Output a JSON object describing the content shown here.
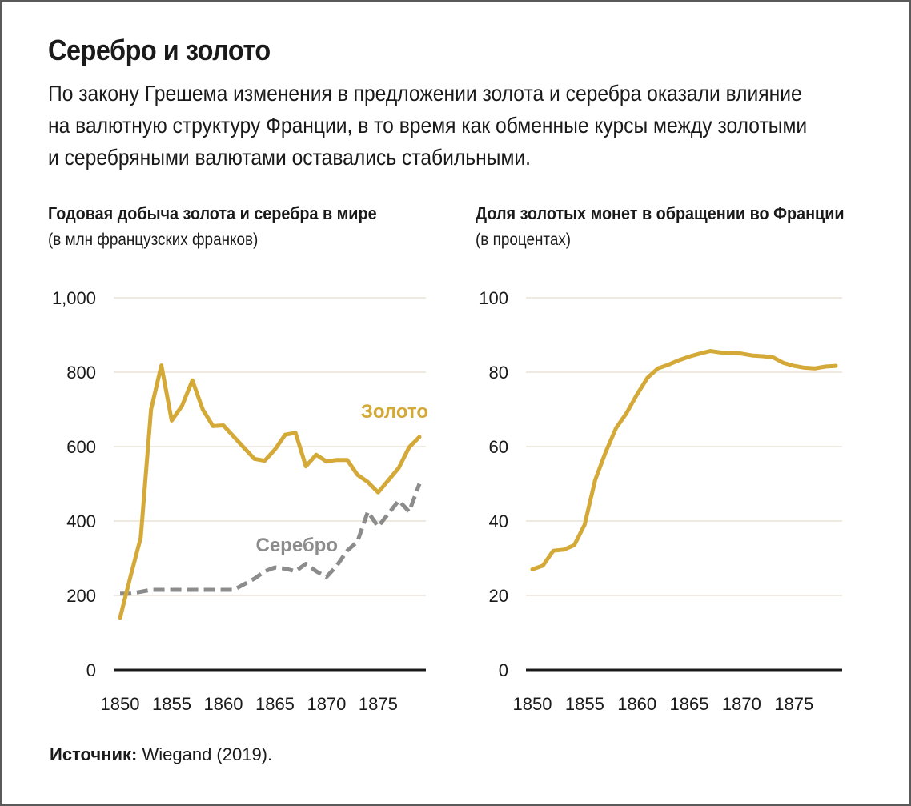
{
  "header": {
    "title": "Серебро и золото",
    "subtitle_lines": [
      "По закону Грешема изменения в предложении золота и серебра оказали влияние",
      "на валютную структуру Франции, в то время как обменные курсы между золотыми",
      "и серебряными валютами оставались стабильными."
    ]
  },
  "source": {
    "label": "Источник:",
    "text": " Wiegand (2019)."
  },
  "colors": {
    "gold": "#d4a937",
    "silver": "#8c8c8c",
    "grid": "#e8e4d8",
    "axis": "#1a1a1a"
  },
  "chart_data": [
    {
      "type": "line",
      "title": "Годовая добыча золота и серебра в мире",
      "ylabel": "(в млн французских франков)",
      "xlim": [
        1850,
        1879
      ],
      "ylim": [
        0,
        1000
      ],
      "yticks": [
        0,
        200,
        400,
        600,
        800,
        1000
      ],
      "ytick_labels": [
        "0",
        "200",
        "400",
        "600",
        "800",
        "1,000"
      ],
      "xticks": [
        1850,
        1855,
        1860,
        1865,
        1870,
        1875
      ],
      "xtick_labels": [
        "1850",
        "1855",
        "1860",
        "1865",
        "1870",
        "1875"
      ],
      "series": [
        {
          "name": "Золото",
          "color": "#d4a937",
          "style": "solid",
          "x": [
            1850,
            1851,
            1852,
            1853,
            1854,
            1855,
            1856,
            1857,
            1858,
            1859,
            1860,
            1861,
            1862,
            1863,
            1864,
            1865,
            1866,
            1867,
            1868,
            1869,
            1870,
            1871,
            1872,
            1873,
            1874,
            1875,
            1876,
            1877,
            1878,
            1879
          ],
          "values": [
            140,
            250,
            355,
            700,
            818,
            670,
            710,
            778,
            700,
            655,
            657,
            627,
            597,
            567,
            562,
            592,
            632,
            637,
            547,
            578,
            560,
            564,
            564,
            524,
            505,
            477,
            510,
            543,
            598,
            626
          ]
        },
        {
          "name": "Серебро",
          "color": "#8c8c8c",
          "style": "dashed",
          "x": [
            1850,
            1851,
            1852,
            1853,
            1854,
            1855,
            1856,
            1857,
            1858,
            1859,
            1860,
            1861,
            1862,
            1863,
            1864,
            1865,
            1866,
            1867,
            1868,
            1869,
            1870,
            1871,
            1872,
            1873,
            1874,
            1875,
            1876,
            1877,
            1878,
            1879
          ],
          "values": [
            205,
            205,
            210,
            215,
            215,
            215,
            215,
            215,
            215,
            215,
            215,
            215,
            230,
            245,
            265,
            275,
            272,
            265,
            285,
            265,
            250,
            280,
            320,
            345,
            425,
            385,
            420,
            455,
            425,
            500
          ]
        }
      ]
    },
    {
      "type": "line",
      "title": "Доля золотых монет в обращении во Франции",
      "ylabel": "(в процентах)",
      "xlim": [
        1850,
        1879
      ],
      "ylim": [
        0,
        100
      ],
      "yticks": [
        0,
        20,
        40,
        60,
        80,
        100
      ],
      "ytick_labels": [
        "0",
        "20",
        "40",
        "60",
        "80",
        "100"
      ],
      "xticks": [
        1850,
        1855,
        1860,
        1865,
        1870,
        1875
      ],
      "xtick_labels": [
        "1850",
        "1855",
        "1860",
        "1865",
        "1870",
        "1875"
      ],
      "series": [
        {
          "name": "Доля золотых монет",
          "color": "#d4a937",
          "style": "solid",
          "x": [
            1850,
            1851,
            1852,
            1853,
            1854,
            1855,
            1856,
            1857,
            1858,
            1859,
            1860,
            1861,
            1862,
            1863,
            1864,
            1865,
            1866,
            1867,
            1868,
            1869,
            1870,
            1871,
            1872,
            1873,
            1874,
            1875,
            1876,
            1877,
            1878,
            1879
          ],
          "values": [
            27,
            28,
            32,
            32.3,
            33.5,
            39,
            51,
            58.5,
            65,
            69,
            74,
            78.5,
            81,
            82,
            83.2,
            84.2,
            85,
            85.7,
            85.3,
            85.2,
            85,
            84.5,
            84.3,
            84,
            82.5,
            81.7,
            81.2,
            81,
            81.5,
            81.7
          ]
        }
      ]
    }
  ]
}
